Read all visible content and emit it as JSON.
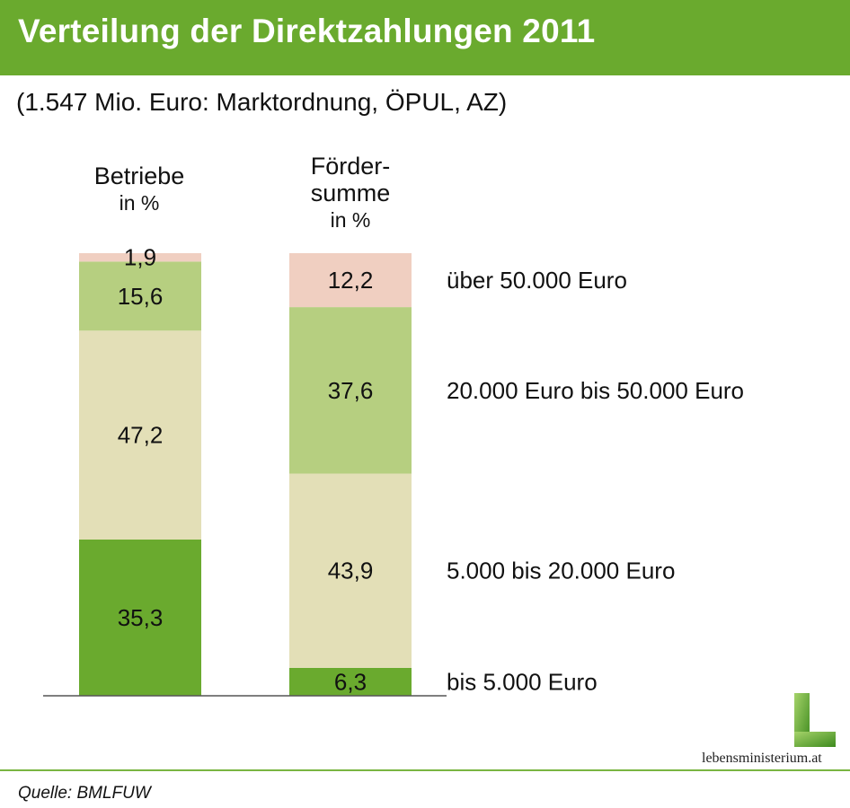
{
  "header": {
    "title": "Verteilung der Direktzahlungen 2011"
  },
  "subtitle": "(1.547 Mio. Euro: Marktordnung, ÖPUL, AZ)",
  "columns": [
    {
      "line1": "Betriebe",
      "line2": "in %"
    },
    {
      "line1a": "Förder-",
      "line1b": "summe",
      "line2": "in %"
    }
  ],
  "chart_data": {
    "type": "bar",
    "stacked": true,
    "unit": "%",
    "title": "Verteilung der Direktzahlungen 2011",
    "categories": [
      "Betriebe in %",
      "Fördersumme in %"
    ],
    "series": [
      {
        "name": "bis 5.000 Euro",
        "color": "#6aaa2e",
        "values": [
          35.3,
          6.3
        ],
        "labels": [
          "35,3",
          "6,3"
        ]
      },
      {
        "name": "5.000 bis 20.000 Euro",
        "color": "#e3dfb7",
        "values": [
          47.2,
          43.9
        ],
        "labels": [
          "47,2",
          "43,9"
        ]
      },
      {
        "name": "20.000 Euro bis 50.000 Euro",
        "color": "#b6cf80",
        "values": [
          15.6,
          37.6
        ],
        "labels": [
          "15,6",
          "37,6"
        ]
      },
      {
        "name": "über 50.000 Euro",
        "color": "#f0cfc1",
        "values": [
          1.9,
          12.2
        ],
        "labels": [
          "1,9",
          "12,2"
        ]
      }
    ],
    "ylim": [
      0,
      100
    ]
  },
  "footer": {
    "source": "Quelle: BMLFUW",
    "logo_text": "lebensministerium.at"
  }
}
